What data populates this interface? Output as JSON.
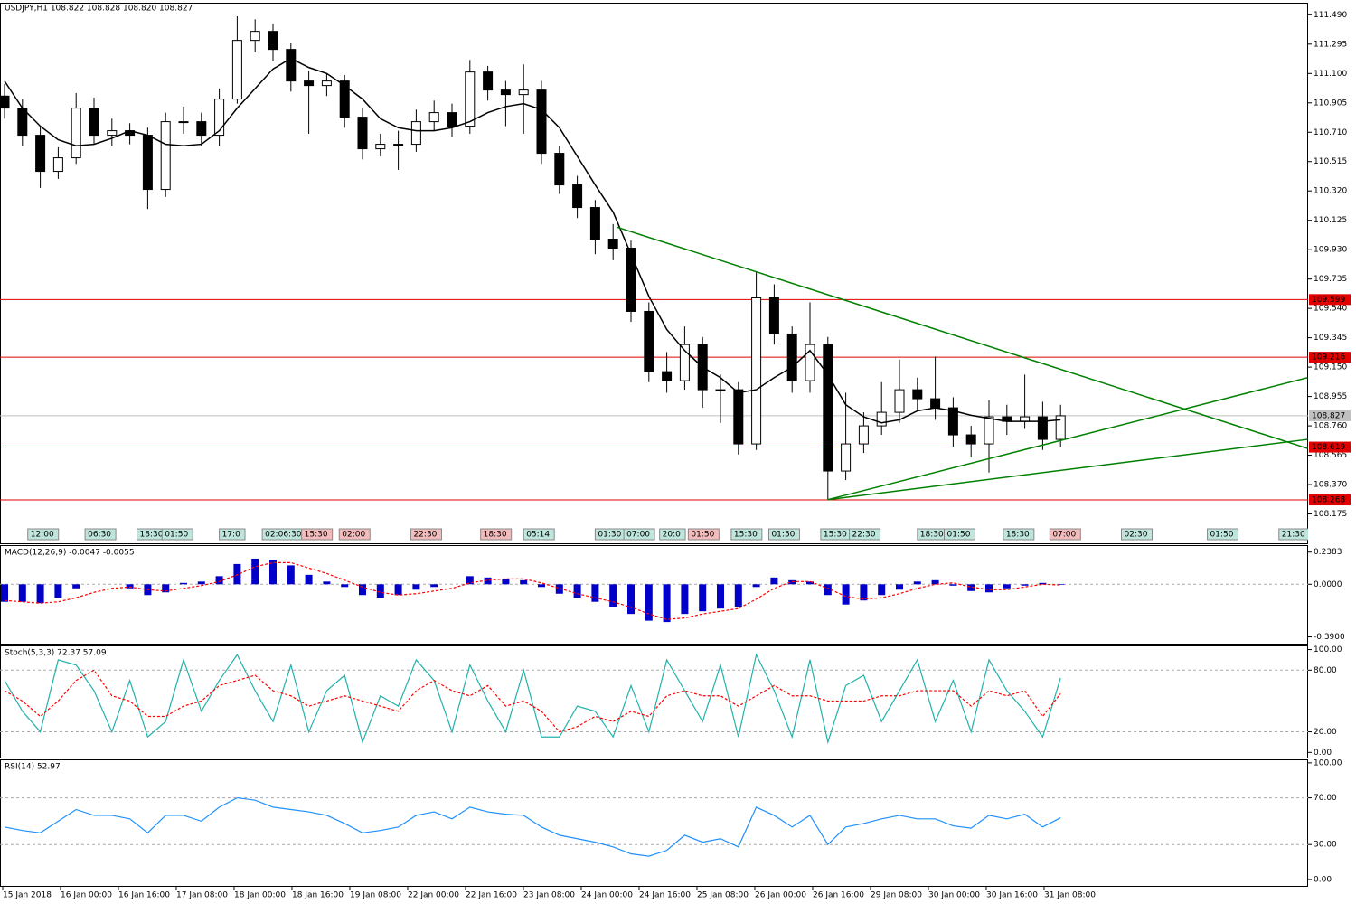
{
  "header": "USDJPY,H1  108.822 108.828 108.820 108.827",
  "chart_data": [
    {
      "type": "candlestick",
      "open": [
        110.95,
        110.87,
        110.69,
        110.45,
        110.54,
        110.87,
        110.69,
        110.72,
        110.69,
        110.33,
        110.78,
        110.78,
        110.69,
        110.93,
        111.32,
        111.38,
        111.26,
        111.05,
        111.02,
        111.05,
        110.81,
        110.6,
        110.63,
        110.63,
        110.78,
        110.84,
        110.75,
        111.11,
        110.99,
        110.96,
        110.99,
        110.57,
        110.36,
        110.21,
        110.0,
        109.94,
        109.52,
        109.12,
        109.06,
        109.3,
        109.0,
        109.0,
        108.64,
        109.61,
        109.37,
        109.06,
        109.3,
        108.46,
        108.64,
        108.76,
        108.85,
        109.0,
        108.94,
        108.88,
        108.7,
        108.64,
        108.82,
        108.79,
        108.82,
        108.67
      ],
      "high": [
        111.03,
        110.93,
        110.75,
        110.61,
        110.97,
        110.94,
        110.8,
        110.77,
        110.74,
        110.84,
        110.88,
        110.84,
        111.0,
        111.48,
        111.46,
        111.43,
        111.3,
        111.12,
        111.1,
        111.09,
        110.87,
        110.7,
        110.72,
        110.86,
        110.92,
        110.9,
        111.19,
        111.15,
        111.05,
        111.16,
        111.05,
        110.62,
        110.42,
        110.26,
        110.1,
        109.99,
        109.58,
        109.25,
        109.42,
        109.35,
        109.1,
        109.05,
        109.78,
        109.7,
        109.42,
        109.58,
        109.35,
        108.98,
        108.85,
        109.05,
        109.2,
        109.08,
        109.22,
        108.95,
        108.76,
        108.93,
        108.9,
        109.1,
        108.92,
        108.9
      ],
      "low": [
        110.8,
        110.62,
        110.34,
        110.4,
        110.5,
        110.63,
        110.62,
        110.63,
        110.2,
        110.28,
        110.7,
        110.62,
        110.62,
        110.9,
        111.24,
        111.18,
        110.98,
        110.7,
        110.95,
        110.74,
        110.53,
        110.55,
        110.46,
        110.58,
        110.72,
        110.68,
        110.7,
        110.92,
        110.75,
        110.7,
        110.5,
        110.3,
        110.14,
        109.9,
        109.86,
        109.45,
        109.05,
        108.98,
        109.0,
        108.88,
        108.78,
        108.57,
        108.6,
        109.3,
        108.98,
        108.98,
        108.27,
        108.4,
        108.58,
        108.7,
        108.78,
        108.86,
        108.8,
        108.62,
        108.55,
        108.45,
        108.7,
        108.74,
        108.6,
        108.62
      ],
      "close": [
        110.87,
        110.69,
        110.45,
        110.54,
        110.87,
        110.69,
        110.72,
        110.69,
        110.33,
        110.78,
        110.78,
        110.69,
        110.93,
        111.32,
        111.38,
        111.26,
        111.05,
        111.02,
        111.05,
        110.81,
        110.6,
        110.63,
        110.63,
        110.78,
        110.84,
        110.75,
        111.11,
        110.99,
        110.96,
        110.99,
        110.57,
        110.36,
        110.21,
        110.0,
        109.94,
        109.52,
        109.12,
        109.06,
        109.3,
        109.0,
        109.0,
        108.64,
        109.61,
        109.37,
        109.06,
        109.3,
        108.46,
        108.64,
        108.76,
        108.85,
        109.0,
        108.94,
        108.88,
        108.7,
        108.64,
        108.82,
        108.79,
        108.82,
        108.67,
        108.827
      ],
      "up_color": "#ffffff",
      "down_color": "#000000",
      "wick_color": "#000000",
      "ma": {
        "color": "#000000",
        "values": [
          111.05,
          110.87,
          110.75,
          110.66,
          110.62,
          110.63,
          110.67,
          110.72,
          110.69,
          110.63,
          110.62,
          110.63,
          110.72,
          110.87,
          111.0,
          111.13,
          111.2,
          111.14,
          111.1,
          111.02,
          110.93,
          110.8,
          110.74,
          110.72,
          110.72,
          110.74,
          110.78,
          110.84,
          110.88,
          110.9,
          110.86,
          110.74,
          110.55,
          110.36,
          110.18,
          109.9,
          109.62,
          109.4,
          109.26,
          109.15,
          109.08,
          108.98,
          109.0,
          109.08,
          109.15,
          109.26,
          109.1,
          108.9,
          108.82,
          108.78,
          108.8,
          108.86,
          108.88,
          108.86,
          108.83,
          108.81,
          108.79,
          108.79,
          108.79,
          108.8
        ]
      },
      "ylim": [
        107.98,
        111.57
      ],
      "yticks": [
        {
          "value": 111.49,
          "label": "111.490"
        },
        111.295,
        {
          "value": 111.1,
          "label": "111.100"
        },
        110.905,
        {
          "value": 110.71,
          "label": "110.710"
        },
        110.515,
        {
          "value": 110.32,
          "label": "110.320"
        },
        110.125,
        {
          "value": 109.93,
          "label": "109.930"
        },
        109.735,
        {
          "value": 109.54,
          "label": "109.540"
        },
        109.345,
        {
          "value": 109.15,
          "label": "109.150"
        },
        108.955,
        {
          "value": 108.76,
          "label": "108.760"
        },
        108.565,
        {
          "value": 108.37,
          "label": "108.370"
        },
        108.175
      ],
      "hlines": [
        {
          "value": 109.599,
          "color": "#e00000"
        },
        {
          "value": 109.216,
          "color": "#e00000"
        },
        {
          "value": 108.619,
          "color": "#e00000"
        },
        {
          "value": 108.268,
          "color": "#e00000"
        },
        {
          "value": 108.827,
          "color": "#c0c0c0"
        }
      ],
      "trendlines": [
        {
          "color": "#008000",
          "x": [
            34.2,
            72.8
          ],
          "y": [
            110.08,
            108.61
          ]
        },
        {
          "color": "#008000",
          "x": [
            46,
            72.8
          ],
          "y": [
            108.27,
            108.67
          ]
        },
        {
          "color": "#008000",
          "x": [
            46,
            72.8
          ],
          "y": [
            108.27,
            109.08
          ]
        }
      ],
      "events": [
        {
          "label": "12:00",
          "x": 1.3,
          "color": "#bfe6dc"
        },
        {
          "label": "06:30",
          "x": 4.5,
          "color": "#bfe6dc"
        },
        {
          "label": "18:30",
          "x": 7.4,
          "color": "#bfe6dc"
        },
        {
          "label": "01:50",
          "x": 8.8,
          "color": "#bfe6dc"
        },
        {
          "label": "17:0",
          "x": 12,
          "color": "#bfe6dc"
        },
        {
          "label": "02:06:30",
          "x": 14.4,
          "color": "#bfe6dc"
        },
        {
          "label": "15:30",
          "x": 16.6,
          "color": "#f2bcbc"
        },
        {
          "label": "02:00",
          "x": 18.7,
          "color": "#f2bcbc"
        },
        {
          "label": "22:30",
          "x": 22.7,
          "color": "#f2bcbc"
        },
        {
          "label": "18:30",
          "x": 26.6,
          "color": "#f2bcbc"
        },
        {
          "label": "05:14",
          "x": 29,
          "color": "#bfe6dc"
        },
        {
          "label": "01:30",
          "x": 33,
          "color": "#bfe6dc"
        },
        {
          "label": "07:00",
          "x": 34.6,
          "color": "#bfe6dc"
        },
        {
          "label": "20:0",
          "x": 36.6,
          "color": "#bfe6dc"
        },
        {
          "label": "01:50",
          "x": 38.2,
          "color": "#f2bcbc"
        },
        {
          "label": "15:30",
          "x": 40.6,
          "color": "#bfe6dc"
        },
        {
          "label": "01:50",
          "x": 42.7,
          "color": "#bfe6dc"
        },
        {
          "label": "15:30",
          "x": 45.6,
          "color": "#bfe6dc"
        },
        {
          "label": "22:30",
          "x": 47.2,
          "color": "#bfe6dc"
        },
        {
          "label": "18:30",
          "x": 51,
          "color": "#bfe6dc"
        },
        {
          "label": "01:50",
          "x": 52.5,
          "color": "#bfe6dc"
        },
        {
          "label": "18:30",
          "x": 55.8,
          "color": "#bfe6dc"
        },
        {
          "label": "07:00",
          "x": 58.4,
          "color": "#f2bcbc"
        },
        {
          "label": "02:30",
          "x": 62.4,
          "color": "#bfe6dc"
        },
        {
          "label": "01:50",
          "x": 67.2,
          "color": "#bfe6dc"
        },
        {
          "label": "21:30",
          "x": 71.2,
          "color": "#bfe6dc"
        }
      ],
      "x_labels": [
        "15 Jan 2018",
        "16 Jan 00:00",
        "16 Jan 16:00",
        "17 Jan 08:00",
        "18 Jan 00:00",
        "18 Jan 16:00",
        "19 Jan 08:00",
        "22 Jan 00:00",
        "22 Jan 16:00",
        "23 Jan 08:00",
        "24 Jan 00:00",
        "24 Jan 16:00",
        "25 Jan 08:00",
        "26 Jan 00:00",
        "26 Jan 16:00",
        "29 Jan 08:00",
        "30 Jan 00:00",
        "30 Jan 16:00",
        "31 Jan 08:00"
      ]
    },
    {
      "type": "macd",
      "title": "MACD(12,26,9) -0.0047 -0.0055",
      "color": "#0000c8",
      "signal_color": "#ff0000",
      "values": [
        -0.13,
        -0.13,
        -0.14,
        -0.1,
        -0.03,
        0.0,
        0.0,
        -0.03,
        -0.08,
        -0.06,
        0.01,
        0.02,
        0.06,
        0.15,
        0.19,
        0.18,
        0.14,
        0.07,
        0.02,
        -0.02,
        -0.08,
        -0.1,
        -0.08,
        -0.04,
        -0.02,
        0.0,
        0.06,
        0.05,
        0.04,
        0.03,
        -0.02,
        -0.07,
        -0.1,
        -0.13,
        -0.17,
        -0.22,
        -0.27,
        -0.28,
        -0.22,
        -0.2,
        -0.18,
        -0.17,
        -0.02,
        0.05,
        0.03,
        0.02,
        -0.08,
        -0.15,
        -0.12,
        -0.08,
        -0.04,
        0.02,
        0.03,
        -0.01,
        -0.05,
        -0.06,
        -0.03,
        -0.01,
        0.01,
        -0.0047
      ],
      "signal": [
        -0.12,
        -0.13,
        -0.14,
        -0.13,
        -0.1,
        -0.06,
        -0.03,
        -0.02,
        -0.04,
        -0.05,
        -0.03,
        -0.01,
        0.02,
        0.07,
        0.13,
        0.16,
        0.16,
        0.12,
        0.08,
        0.03,
        -0.02,
        -0.06,
        -0.08,
        -0.07,
        -0.05,
        -0.03,
        0.01,
        0.03,
        0.04,
        0.04,
        0.01,
        -0.03,
        -0.07,
        -0.1,
        -0.13,
        -0.17,
        -0.22,
        -0.26,
        -0.25,
        -0.22,
        -0.2,
        -0.18,
        -0.11,
        -0.03,
        0.02,
        0.02,
        -0.03,
        -0.09,
        -0.11,
        -0.1,
        -0.07,
        -0.03,
        0.0,
        0.01,
        -0.02,
        -0.04,
        -0.04,
        -0.02,
        0.0,
        -0.0055
      ],
      "ylim": [
        -0.44,
        0.29
      ],
      "yticks": [
        0.2383,
        {
          "value": 0,
          "label": "0.0000"
        },
        {
          "value": -0.39,
          "label": "-0.3900"
        }
      ],
      "levels": [
        0
      ]
    },
    {
      "type": "stoch",
      "title": "Stoch(5,3,3) 72.37 57.09",
      "color": "#20b2aa",
      "signal_color": "#ff0000",
      "values": [
        70,
        40,
        20,
        90,
        85,
        60,
        20,
        70,
        15,
        30,
        90,
        40,
        70,
        95,
        60,
        30,
        85,
        20,
        60,
        75,
        10,
        55,
        45,
        90,
        70,
        20,
        85,
        50,
        20,
        80,
        15,
        15,
        45,
        40,
        15,
        65,
        20,
        90,
        60,
        30,
        85,
        15,
        95,
        60,
        15,
        90,
        10,
        65,
        75,
        30,
        60,
        90,
        30,
        70,
        20,
        90,
        60,
        40,
        15,
        72.37
      ],
      "signal": [
        60,
        50,
        35,
        50,
        70,
        80,
        55,
        50,
        35,
        35,
        45,
        50,
        65,
        70,
        75,
        60,
        55,
        45,
        50,
        55,
        50,
        45,
        40,
        60,
        70,
        60,
        55,
        65,
        45,
        50,
        40,
        20,
        25,
        35,
        30,
        40,
        35,
        55,
        60,
        55,
        55,
        45,
        55,
        65,
        55,
        55,
        50,
        50,
        50,
        55,
        55,
        60,
        60,
        60,
        45,
        60,
        55,
        60,
        35,
        57.09
      ],
      "ylim": [
        -5,
        104
      ],
      "yticks": [
        {
          "value": 100,
          "label": "100.00"
        },
        {
          "value": 80,
          "label": "80.00"
        },
        {
          "value": 20,
          "label": "20.00"
        },
        {
          "value": 0,
          "label": "0.00"
        }
      ],
      "levels": [
        80,
        20
      ]
    },
    {
      "type": "rsi",
      "title": "RSI(14) 52.97",
      "color": "#1e90ff",
      "values": [
        45,
        42,
        40,
        50,
        60,
        55,
        55,
        52,
        40,
        55,
        55,
        50,
        62,
        70,
        68,
        62,
        60,
        58,
        55,
        48,
        40,
        42,
        45,
        55,
        58,
        52,
        62,
        58,
        56,
        55,
        45,
        38,
        35,
        32,
        28,
        22,
        20,
        25,
        38,
        32,
        35,
        28,
        62,
        55,
        45,
        55,
        30,
        45,
        48,
        52,
        55,
        52,
        52,
        46,
        44,
        55,
        52,
        56,
        45,
        52.97
      ],
      "ylim": [
        -5.5,
        103
      ],
      "yticks": [
        {
          "value": 100,
          "label": "100.00"
        },
        {
          "value": 70,
          "label": "70.00"
        },
        {
          "value": 30,
          "label": "30.00"
        },
        {
          "value": 0,
          "label": "0.00"
        }
      ],
      "levels": [
        70,
        30
      ]
    }
  ]
}
